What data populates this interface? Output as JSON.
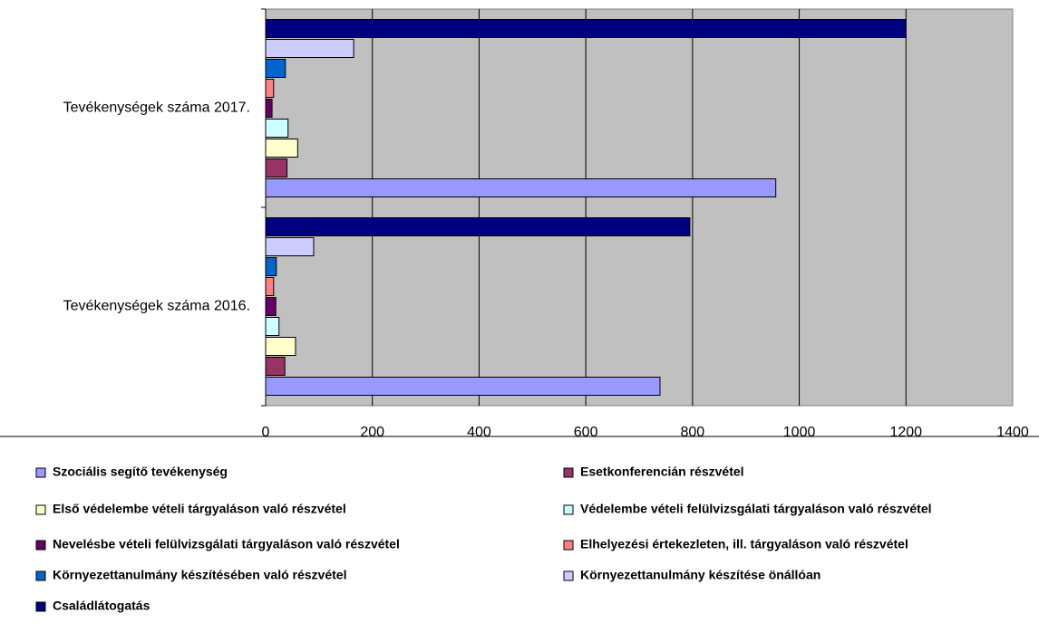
{
  "chart_data": {
    "type": "bar",
    "orientation": "horizontal",
    "categories": [
      "Tevékenységek száma 2016.",
      "Tevékenységek száma 2017."
    ],
    "series": [
      {
        "name": "Szociális segítő tevékenység",
        "color": "#9999ff",
        "values": [
          739,
          956
        ]
      },
      {
        "name": "Esetkonferencián részvétel",
        "color": "#993366",
        "values": [
          36,
          40
        ]
      },
      {
        "name": "Első védelembe vételi tárgyaláson való részvétel",
        "color": "#ffffcc",
        "values": [
          56,
          60
        ]
      },
      {
        "name": "Védelembe vételi felülvizsgálati tárgyaláson való részvétel",
        "color": "#ccffff",
        "values": [
          25,
          42
        ]
      },
      {
        "name": "Nevelésbe vételi felülvizsgálati tárgyaláson való részvétel",
        "color": "#660066",
        "values": [
          19,
          12
        ]
      },
      {
        "name": "Elhelyezési értekezleten, ill. tárgyaláson való részvétel",
        "color": "#ff8080",
        "values": [
          15,
          15
        ]
      },
      {
        "name": "Környezettanulmány készítésében való részvétel",
        "color": "#0066cc",
        "values": [
          20,
          37
        ]
      },
      {
        "name": "Környezettanulmány készítése önállóan",
        "color": "#ccccff",
        "values": [
          90,
          165
        ]
      },
      {
        "name": "Családlátogatás",
        "color": "#000080",
        "values": [
          795,
          1200
        ]
      }
    ],
    "xlim": [
      0,
      1400
    ],
    "xticks": [
      0,
      200,
      400,
      600,
      800,
      1000,
      1200,
      1400
    ],
    "grid": true,
    "legend": "bottom"
  }
}
